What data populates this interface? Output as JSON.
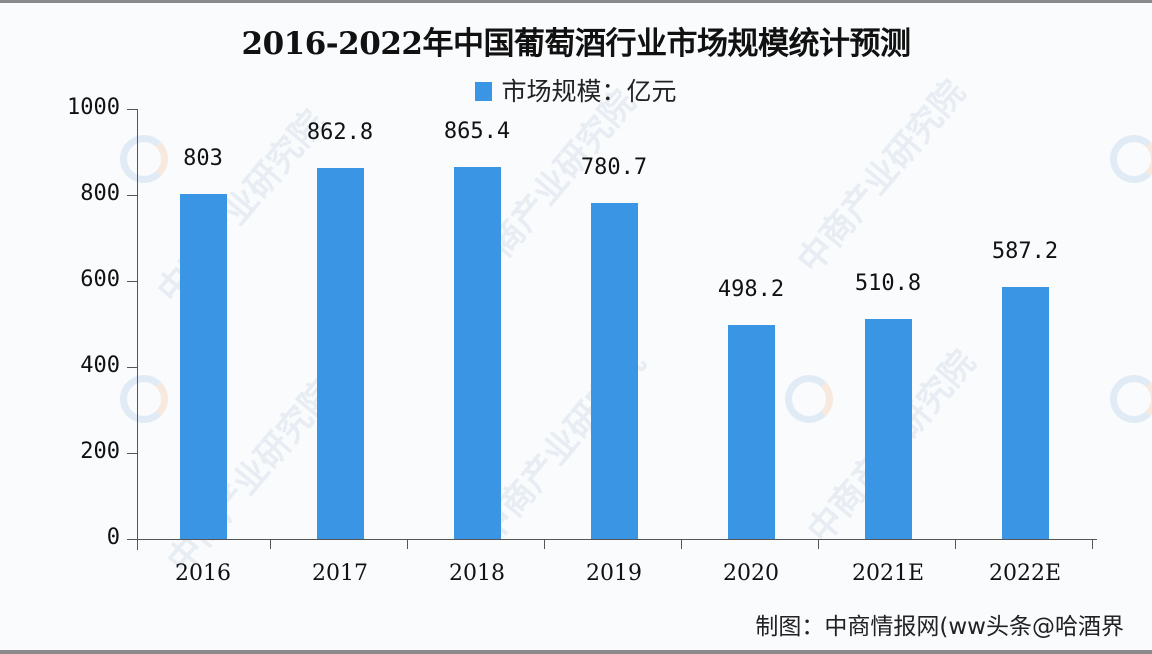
{
  "title": "2016-2022年中国葡萄酒行业市场规模统计预测",
  "legend": {
    "label": "市场规模：亿元",
    "color": "#3a95e4"
  },
  "footer": "制图：中商情报网(ww头条@哈酒界",
  "watermark": "中商产业研究院",
  "chart_data": {
    "type": "bar",
    "title": "2016-2022年中国葡萄酒行业市场规模统计预测",
    "xlabel": "",
    "ylabel": "",
    "categories": [
      "2016",
      "2017",
      "2018",
      "2019",
      "2020",
      "2021E",
      "2022E"
    ],
    "series": [
      {
        "name": "市场规模：亿元",
        "values": [
          803,
          862.8,
          865.4,
          780.7,
          498.2,
          510.8,
          587.2
        ]
      }
    ],
    "value_labels": [
      "803",
      "862.8",
      "865.4",
      "780.7",
      "498.2",
      "510.8",
      "587.2"
    ],
    "ylim": [
      0,
      1000
    ],
    "yticks": [
      0,
      200,
      400,
      600,
      800,
      1000
    ],
    "grid": false,
    "legend_position": "top-center",
    "bar_color": "#3a95e4"
  }
}
